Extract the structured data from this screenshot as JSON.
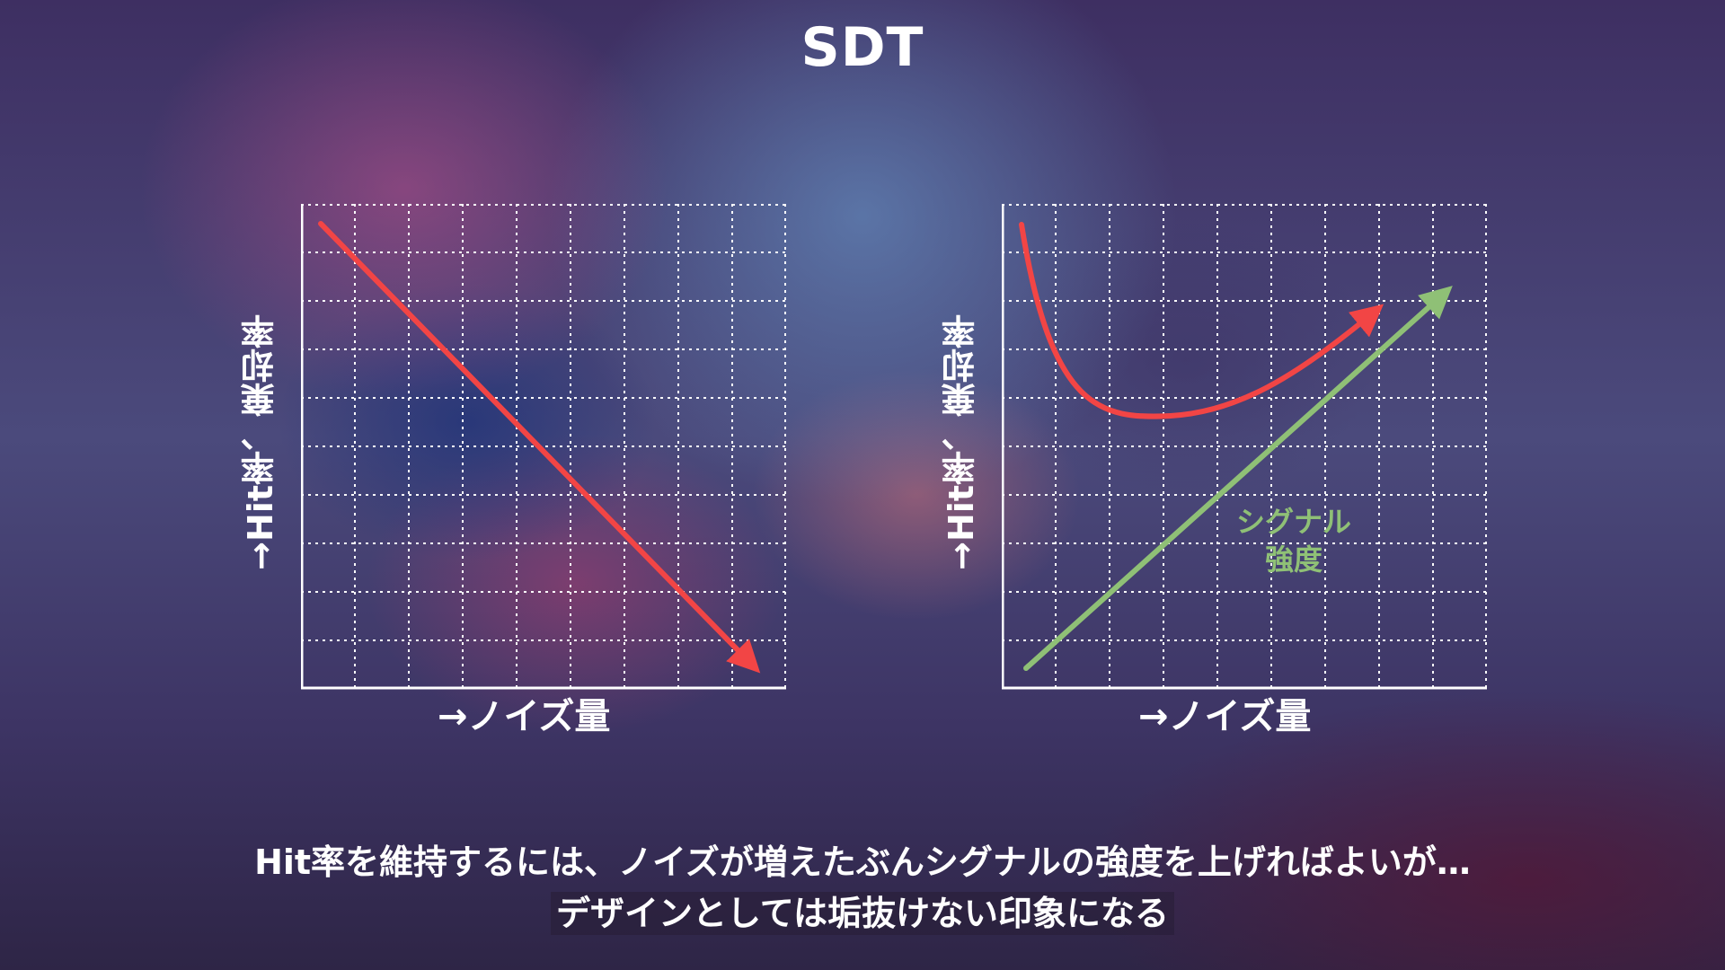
{
  "title": "SDT",
  "charts": {
    "left": {
      "ylabel": "→Hit率、棄却率",
      "xlabel": "→ノイズ量"
    },
    "right": {
      "ylabel": "→Hit率、棄却率",
      "xlabel": "→ノイズ量",
      "signal_label_line1": "シグナル",
      "signal_label_line2": "強度"
    }
  },
  "colors": {
    "red_arrow": "#f24545",
    "green_arrow": "#8fc076",
    "grid": "#ffffff"
  },
  "caption": {
    "line1": "Hit率を維持するには、ノイズが増えたぶんシグナルの強度を上げればよいが…",
    "line2": "デザインとしては垢抜けない印象になる"
  }
}
